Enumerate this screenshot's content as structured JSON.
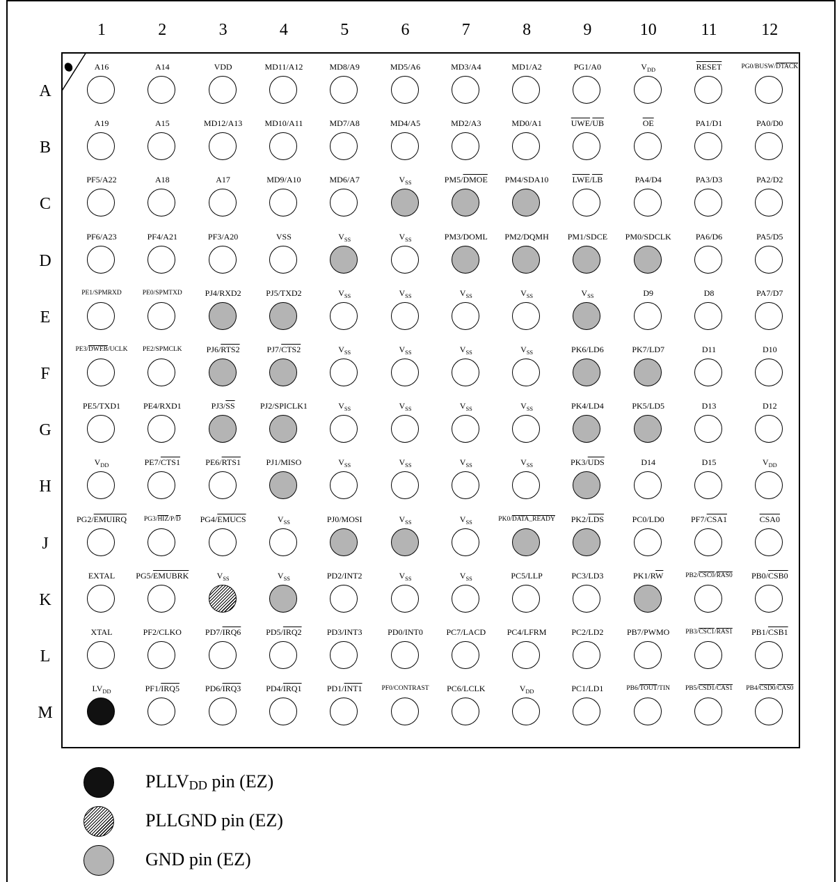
{
  "columns": [
    "1",
    "2",
    "3",
    "4",
    "5",
    "6",
    "7",
    "8",
    "9",
    "10",
    "11",
    "12"
  ],
  "rows": [
    "A",
    "B",
    "C",
    "D",
    "E",
    "F",
    "G",
    "H",
    "J",
    "K",
    "L",
    "M"
  ],
  "colors": {
    "gnd": "#b4b4b4",
    "pll_vdd": "#111111",
    "outline": "#000000"
  },
  "pins": [
    [
      {
        "label": "A16",
        "type": "normal"
      },
      {
        "label": "A14",
        "type": "normal"
      },
      {
        "label": "VDD",
        "type": "normal"
      },
      {
        "label": "MD11/A12",
        "type": "normal"
      },
      {
        "label": "MD8/A9",
        "type": "normal"
      },
      {
        "label": "MD5/A6",
        "type": "normal"
      },
      {
        "label": "MD3/A4",
        "type": "normal"
      },
      {
        "label": "MD1/A2",
        "type": "normal"
      },
      {
        "label": "PG1/A0",
        "type": "normal"
      },
      {
        "label": "V{DD}",
        "type": "normal"
      },
      {
        "label": "[RESET]",
        "type": "normal"
      },
      {
        "label": "PG0/BUSW/[DTACK]",
        "type": "normal",
        "small": true
      }
    ],
    [
      {
        "label": "A19",
        "type": "normal"
      },
      {
        "label": "A15",
        "type": "normal"
      },
      {
        "label": "MD12/A13",
        "type": "normal"
      },
      {
        "label": "MD10/A11",
        "type": "normal"
      },
      {
        "label": "MD7/A8",
        "type": "normal"
      },
      {
        "label": "MD4/A5",
        "type": "normal"
      },
      {
        "label": "MD2/A3",
        "type": "normal"
      },
      {
        "label": "MD0/A1",
        "type": "normal"
      },
      {
        "label": "[UWE]/[UB]",
        "type": "normal"
      },
      {
        "label": "[OE]",
        "type": "normal"
      },
      {
        "label": "PA1/D1",
        "type": "normal"
      },
      {
        "label": "PA0/D0",
        "type": "normal"
      }
    ],
    [
      {
        "label": "PF5/A22",
        "type": "normal"
      },
      {
        "label": "A18",
        "type": "normal"
      },
      {
        "label": "A17",
        "type": "normal"
      },
      {
        "label": "MD9/A10",
        "type": "normal"
      },
      {
        "label": "MD6/A7",
        "type": "normal"
      },
      {
        "label": "V{SS}",
        "type": "gnd"
      },
      {
        "label": "PM5/[DMOE]",
        "type": "gnd"
      },
      {
        "label": "PM4/SDA10",
        "type": "gnd"
      },
      {
        "label": "[LWE]/[LB]",
        "type": "normal"
      },
      {
        "label": "PA4/D4",
        "type": "normal"
      },
      {
        "label": "PA3/D3",
        "type": "normal"
      },
      {
        "label": "PA2/D2",
        "type": "normal"
      }
    ],
    [
      {
        "label": "PF6/A23",
        "type": "normal"
      },
      {
        "label": "PF4/A21",
        "type": "normal"
      },
      {
        "label": "PF3/A20",
        "type": "normal"
      },
      {
        "label": "VSS",
        "type": "normal"
      },
      {
        "label": "V{SS}",
        "type": "gnd"
      },
      {
        "label": "V{SS}",
        "type": "normal"
      },
      {
        "label": "PM3/DOML",
        "type": "gnd"
      },
      {
        "label": "PM2/DQMH",
        "type": "gnd"
      },
      {
        "label": "PM1/SDCE",
        "type": "gnd"
      },
      {
        "label": "PM0/SDCLK",
        "type": "gnd"
      },
      {
        "label": "PA6/D6",
        "type": "normal"
      },
      {
        "label": "PA5/D5",
        "type": "normal"
      }
    ],
    [
      {
        "label": "PE1/SPMRXD",
        "type": "normal",
        "small": true
      },
      {
        "label": "PE0/SPMTXD",
        "type": "normal",
        "small": true
      },
      {
        "label": "PJ4/RXD2",
        "type": "gnd"
      },
      {
        "label": "PJ5/TXD2",
        "type": "gnd"
      },
      {
        "label": "V{SS}",
        "type": "normal"
      },
      {
        "label": "V{SS}",
        "type": "normal"
      },
      {
        "label": "V{SS}",
        "type": "normal"
      },
      {
        "label": "V{SS}",
        "type": "normal"
      },
      {
        "label": "V{SS}",
        "type": "gnd"
      },
      {
        "label": "D9",
        "type": "normal"
      },
      {
        "label": "D8",
        "type": "normal"
      },
      {
        "label": "PA7/D7",
        "type": "normal"
      }
    ],
    [
      {
        "label": "PE3/[DWEB]/UCLK",
        "type": "normal",
        "small": true
      },
      {
        "label": "PE2/SPMCLK",
        "type": "normal",
        "small": true
      },
      {
        "label": "PJ6/[RTS2]",
        "type": "gnd"
      },
      {
        "label": "PJ7/[CTS2]",
        "type": "gnd"
      },
      {
        "label": "V{SS}",
        "type": "normal"
      },
      {
        "label": "V{SS}",
        "type": "normal"
      },
      {
        "label": "V{SS}",
        "type": "normal"
      },
      {
        "label": "V{SS}",
        "type": "normal"
      },
      {
        "label": "PK6/LD6",
        "type": "gnd"
      },
      {
        "label": "PK7/LD7",
        "type": "gnd"
      },
      {
        "label": "D11",
        "type": "normal"
      },
      {
        "label": "D10",
        "type": "normal"
      }
    ],
    [
      {
        "label": "PE5/TXD1",
        "type": "normal"
      },
      {
        "label": "PE4/RXD1",
        "type": "normal"
      },
      {
        "label": "PJ3/[SS]",
        "type": "gnd"
      },
      {
        "label": "PJ2/SPICLK1",
        "type": "gnd"
      },
      {
        "label": "V{SS}",
        "type": "normal"
      },
      {
        "label": "V{SS}",
        "type": "normal"
      },
      {
        "label": "V{SS}",
        "type": "normal"
      },
      {
        "label": "V{SS}",
        "type": "normal"
      },
      {
        "label": "PK4/LD4",
        "type": "gnd"
      },
      {
        "label": "PK5/LD5",
        "type": "gnd"
      },
      {
        "label": "D13",
        "type": "normal"
      },
      {
        "label": "D12",
        "type": "normal"
      }
    ],
    [
      {
        "label": "V{DD}",
        "type": "normal"
      },
      {
        "label": "PE7/[CTS1]",
        "type": "normal"
      },
      {
        "label": "PE6/[RTS1]",
        "type": "normal"
      },
      {
        "label": "PJ1/MISO",
        "type": "gnd"
      },
      {
        "label": "V{SS}",
        "type": "normal"
      },
      {
        "label": "V{SS}",
        "type": "normal"
      },
      {
        "label": "V{SS}",
        "type": "normal"
      },
      {
        "label": "V{SS}",
        "type": "normal"
      },
      {
        "label": "PK3/[UDS]",
        "type": "gnd"
      },
      {
        "label": "D14",
        "type": "normal"
      },
      {
        "label": "D15",
        "type": "normal"
      },
      {
        "label": "V{DD}",
        "type": "normal"
      }
    ],
    [
      {
        "label": "PG2/[EMUIRQ]",
        "type": "normal"
      },
      {
        "label": "PG3/[HIZ]/P/[D]",
        "type": "normal",
        "small": true
      },
      {
        "label": "PG4/[EMUCS]",
        "type": "normal"
      },
      {
        "label": "V{SS}",
        "type": "normal"
      },
      {
        "label": "PJ0/MOSI",
        "type": "gnd"
      },
      {
        "label": "V{SS}",
        "type": "gnd"
      },
      {
        "label": "V{SS}",
        "type": "normal"
      },
      {
        "label": "PK0/[DATA_READY]",
        "type": "gnd",
        "small": true
      },
      {
        "label": "PK2/[LDS]",
        "type": "gnd"
      },
      {
        "label": "PC0/LD0",
        "type": "normal"
      },
      {
        "label": "PF7/[CSA1]",
        "type": "normal"
      },
      {
        "label": "[CSA0]",
        "type": "normal"
      }
    ],
    [
      {
        "label": "EXTAL",
        "type": "normal"
      },
      {
        "label": "PG5/[EMUBRK]",
        "type": "normal"
      },
      {
        "label": "V{SS}",
        "type": "pllgnd"
      },
      {
        "label": "V{SS}",
        "type": "gnd"
      },
      {
        "label": "PD2/INT2",
        "type": "normal"
      },
      {
        "label": "V{SS}",
        "type": "normal"
      },
      {
        "label": "V{SS}",
        "type": "normal"
      },
      {
        "label": "PC5/LLP",
        "type": "normal"
      },
      {
        "label": "PC3/LD3",
        "type": "normal"
      },
      {
        "label": "PK1/R[W]",
        "type": "gnd"
      },
      {
        "label": "PB2/[CSC0]/[RAS0]",
        "type": "normal",
        "small": true
      },
      {
        "label": "PB0/[CSB0]",
        "type": "normal"
      }
    ],
    [
      {
        "label": "XTAL",
        "type": "normal"
      },
      {
        "label": "PF2/CLKO",
        "type": "normal"
      },
      {
        "label": "PD7/[IRQ6]",
        "type": "normal"
      },
      {
        "label": "PD5/[IRQ2]",
        "type": "normal"
      },
      {
        "label": "PD3/INT3",
        "type": "normal"
      },
      {
        "label": "PD0/INT0",
        "type": "normal"
      },
      {
        "label": "PC7/LACD",
        "type": "normal"
      },
      {
        "label": "PC4/LFRM",
        "type": "normal"
      },
      {
        "label": "PC2/LD2",
        "type": "normal"
      },
      {
        "label": "PB7/PWMO",
        "type": "normal"
      },
      {
        "label": "PB3/[CSC1]/[RAS1]",
        "type": "normal",
        "small": true
      },
      {
        "label": "PB1/[CSB1]",
        "type": "normal"
      }
    ],
    [
      {
        "label": "LV{DD}",
        "type": "pllvdd"
      },
      {
        "label": "PF1/[IRQ5]",
        "type": "normal"
      },
      {
        "label": "PD6/[IRQ3]",
        "type": "normal"
      },
      {
        "label": "PD4/[IRQ1]",
        "type": "normal"
      },
      {
        "label": "PD1/[INT1]",
        "type": "normal"
      },
      {
        "label": "PF0/CONTRAST",
        "type": "normal",
        "small": true
      },
      {
        "label": "PC6/LCLK",
        "type": "normal"
      },
      {
        "label": "V{DD}",
        "type": "normal"
      },
      {
        "label": "PC1/LD1",
        "type": "normal"
      },
      {
        "label": "PB6/[TOUT]/TIN",
        "type": "normal",
        "small": true
      },
      {
        "label": "PB5/[CSD1]/[CAS1]",
        "type": "normal",
        "small": true
      },
      {
        "label": "PB4/[CSD0]/[CAS0]",
        "type": "normal",
        "small": true
      }
    ]
  ],
  "legend": [
    {
      "type": "pllvdd",
      "label": "PLLV{DD} pin (EZ)"
    },
    {
      "type": "pllgnd",
      "label": "PLLGND pin (EZ)"
    },
    {
      "type": "gnd",
      "label": "GND pin (EZ)"
    }
  ]
}
